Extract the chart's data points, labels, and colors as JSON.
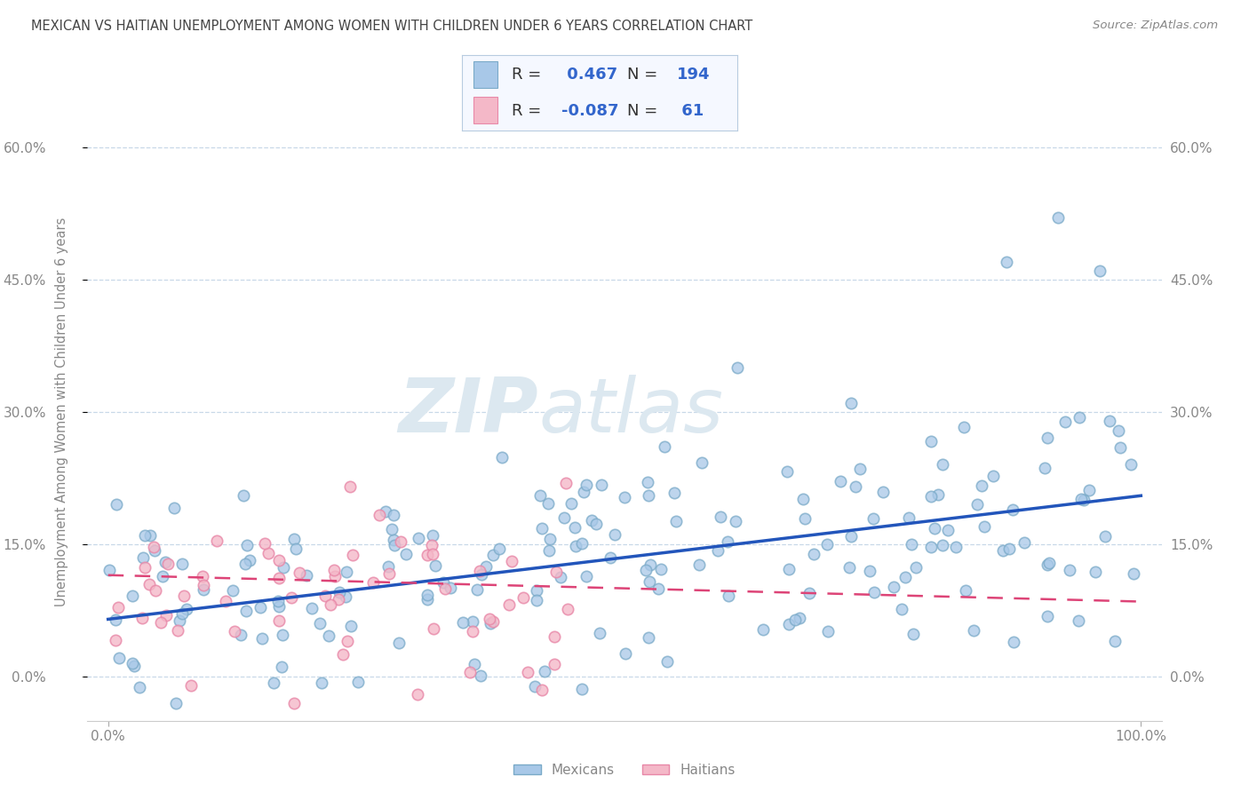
{
  "title": "MEXICAN VS HAITIAN UNEMPLOYMENT AMONG WOMEN WITH CHILDREN UNDER 6 YEARS CORRELATION CHART",
  "source": "Source: ZipAtlas.com",
  "ylabel": "Unemployment Among Women with Children Under 6 years",
  "ytick_values": [
    0.0,
    15.0,
    30.0,
    45.0,
    60.0
  ],
  "blue_color": "#a8c8e8",
  "blue_edge_color": "#7aaac8",
  "pink_color": "#f4b8c8",
  "pink_edge_color": "#e888a8",
  "blue_line_color": "#2255bb",
  "pink_line_color": "#dd4477",
  "blue_R": 0.467,
  "blue_N": 194,
  "pink_R": -0.087,
  "pink_N": 61,
  "watermark_zip": "ZIP",
  "watermark_atlas": "atlas",
  "watermark_color": "#dce8f0",
  "background_color": "#ffffff",
  "grid_color": "#c8d8e8",
  "title_color": "#444444",
  "axis_label_color": "#888888",
  "tick_color": "#888888",
  "legend_label_color": "#333333",
  "legend_value_color": "#3366cc",
  "mexicans_label": "Mexicans",
  "haitians_label": "Haitians",
  "xlim": [
    0,
    100
  ],
  "ylim": [
    0,
    65
  ],
  "blue_line_x0": 0,
  "blue_line_y0": 6.5,
  "blue_line_x1": 100,
  "blue_line_y1": 20.5,
  "pink_line_x0": 0,
  "pink_line_y0": 11.5,
  "pink_line_x1": 100,
  "pink_line_y1": 8.5
}
